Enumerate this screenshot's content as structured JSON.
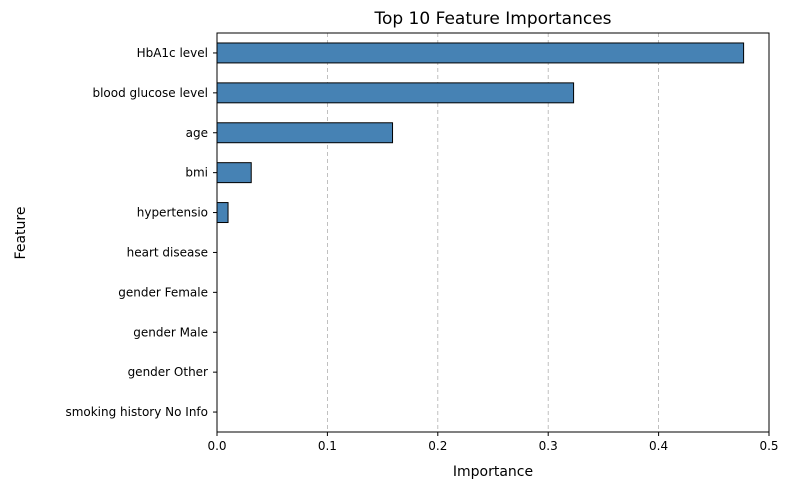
{
  "chart_data": {
    "type": "bar",
    "orientation": "horizontal",
    "title": "Top 10 Feature Importances",
    "xlabel": "Importance",
    "ylabel": "Feature",
    "categories": [
      "HbA1c level",
      "blood glucose level",
      "age",
      "bmi",
      "hypertensio",
      "heart disease",
      "gender Female",
      "gender Male",
      "gender Other",
      "smoking history No Info"
    ],
    "values": [
      0.477,
      0.323,
      0.159,
      0.031,
      0.01,
      0.0,
      0.0,
      0.0,
      0.0,
      0.0
    ],
    "xlim": [
      0,
      0.5
    ],
    "xticks": [
      "0.0",
      "0.1",
      "0.2",
      "0.3",
      "0.4",
      "0.5"
    ],
    "grid": "x-dashed",
    "bar_color": "#4682b4",
    "bar_edge_color": "#000000",
    "grid_color": "#b0b0b0"
  }
}
